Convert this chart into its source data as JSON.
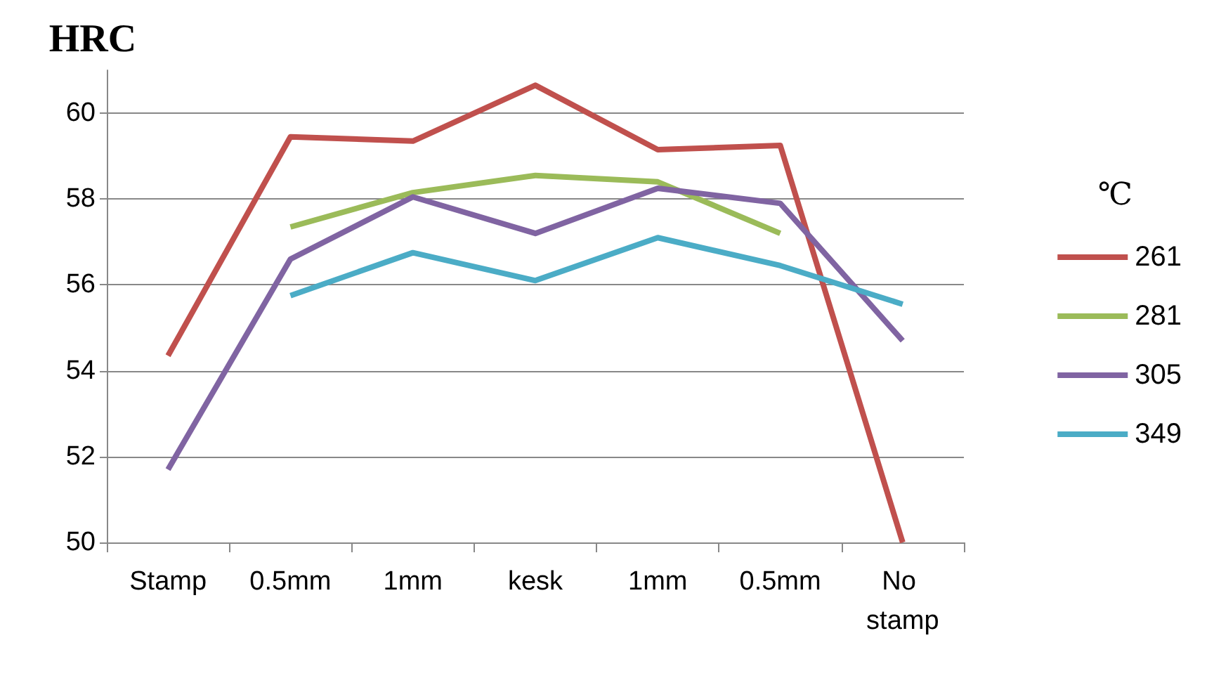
{
  "chart_data": {
    "type": "line",
    "ylabel": "HRC",
    "legend_title": "℃",
    "categories": [
      "Stamp",
      "0.5mm",
      "1mm",
      "kesk",
      "1mm",
      "0.5mm",
      "No stamp"
    ],
    "series": [
      {
        "name": "261",
        "color": "#c0504d",
        "values": [
          54.35,
          59.45,
          59.35,
          60.65,
          59.15,
          59.25,
          50
        ]
      },
      {
        "name": "281",
        "color": "#9bbb59",
        "values": [
          null,
          57.35,
          58.15,
          58.55,
          58.4,
          57.2,
          null
        ]
      },
      {
        "name": "305",
        "color": "#8064a2",
        "values": [
          51.7,
          56.6,
          58.05,
          57.2,
          58.25,
          57.9,
          54.7
        ]
      },
      {
        "name": "349",
        "color": "#4bacc6",
        "values": [
          null,
          55.75,
          56.75,
          56.1,
          57.1,
          56.45,
          55.55
        ]
      }
    ],
    "ylim": [
      50,
      61
    ],
    "yticks": [
      50,
      52,
      54,
      56,
      58,
      60
    ],
    "grid": "y",
    "legend": "right",
    "marker": "none",
    "line_style": "solid"
  }
}
